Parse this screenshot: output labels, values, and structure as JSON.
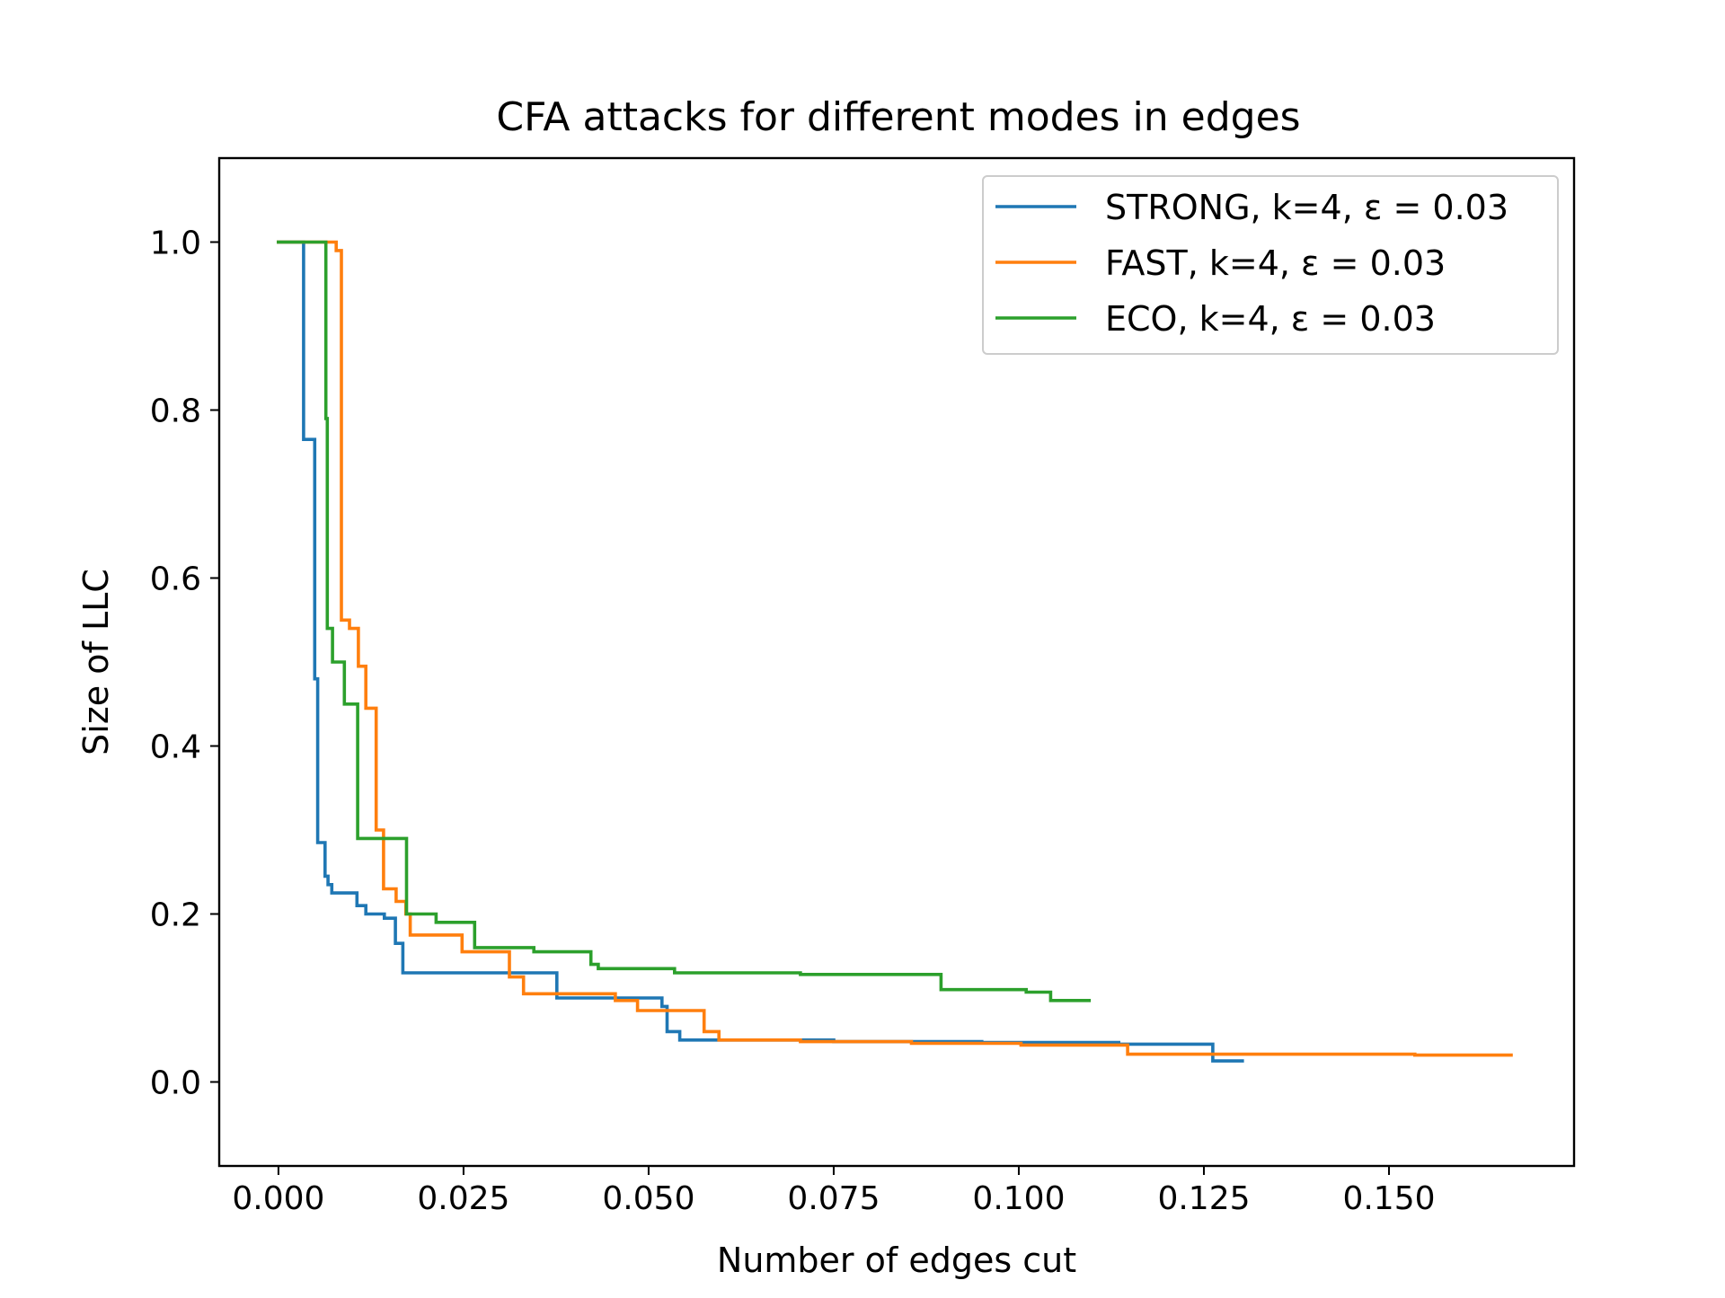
{
  "chart_data": {
    "type": "line",
    "title": "CFA attacks for different modes in edges",
    "xlabel": "Number of edges cut",
    "ylabel": "Size of LLC",
    "xlim": [
      -0.008,
      0.175
    ],
    "ylim": [
      -0.1,
      1.1
    ],
    "x_ticks": [
      0.0,
      0.025,
      0.05,
      0.075,
      0.1,
      0.125,
      0.15
    ],
    "x_tick_labels": [
      "0.000",
      "0.025",
      "0.050",
      "0.075",
      "0.100",
      "0.125",
      "0.150"
    ],
    "y_ticks": [
      0.0,
      0.2,
      0.4,
      0.6,
      0.8,
      1.0
    ],
    "y_tick_labels": [
      "0.0",
      "0.2",
      "0.4",
      "0.6",
      "0.8",
      "1.0"
    ],
    "grid": false,
    "legend_position": "upper right",
    "series": [
      {
        "name": "STRONG, k=4, ε = 0.03",
        "color": "#1f77b4",
        "step": true,
        "x": [
          0.0,
          0.0034,
          0.0049,
          0.0053,
          0.0063,
          0.0067,
          0.0072,
          0.0085,
          0.0106,
          0.0118,
          0.0143,
          0.0158,
          0.0168,
          0.025,
          0.0376,
          0.0411,
          0.0518,
          0.0525,
          0.0542,
          0.0595,
          0.075,
          0.095,
          0.1135,
          0.1262,
          0.1302
        ],
        "y": [
          1.0,
          0.765,
          0.48,
          0.285,
          0.245,
          0.235,
          0.225,
          0.225,
          0.21,
          0.2,
          0.195,
          0.165,
          0.13,
          0.13,
          0.1,
          0.1,
          0.09,
          0.06,
          0.05,
          0.05,
          0.048,
          0.047,
          0.045,
          0.025,
          0.025
        ]
      },
      {
        "name": "FAST, k=4, ε = 0.03",
        "color": "#ff7f0e",
        "step": true,
        "x": [
          0.0,
          0.0078,
          0.0085,
          0.0096,
          0.0108,
          0.0118,
          0.0132,
          0.0142,
          0.0159,
          0.0172,
          0.0178,
          0.0248,
          0.0312,
          0.0331,
          0.0455,
          0.0485,
          0.0522,
          0.0575,
          0.0595,
          0.0705,
          0.0855,
          0.1003,
          0.1147,
          0.1535,
          0.1665
        ],
        "y": [
          1.0,
          0.99,
          0.55,
          0.54,
          0.495,
          0.445,
          0.3,
          0.23,
          0.215,
          0.2,
          0.175,
          0.155,
          0.125,
          0.105,
          0.097,
          0.085,
          0.085,
          0.06,
          0.05,
          0.048,
          0.046,
          0.044,
          0.033,
          0.032,
          0.032
        ]
      },
      {
        "name": "ECO, k=4, ε = 0.03",
        "color": "#2ca02c",
        "step": true,
        "x": [
          0.0,
          0.0064,
          0.0066,
          0.0073,
          0.0089,
          0.0107,
          0.0173,
          0.0213,
          0.0265,
          0.0345,
          0.0422,
          0.0432,
          0.0535,
          0.0705,
          0.0895,
          0.101,
          0.1043,
          0.1095
        ],
        "y": [
          1.0,
          0.79,
          0.54,
          0.5,
          0.45,
          0.29,
          0.2,
          0.19,
          0.16,
          0.155,
          0.14,
          0.135,
          0.13,
          0.128,
          0.11,
          0.107,
          0.097,
          0.097
        ]
      }
    ]
  }
}
